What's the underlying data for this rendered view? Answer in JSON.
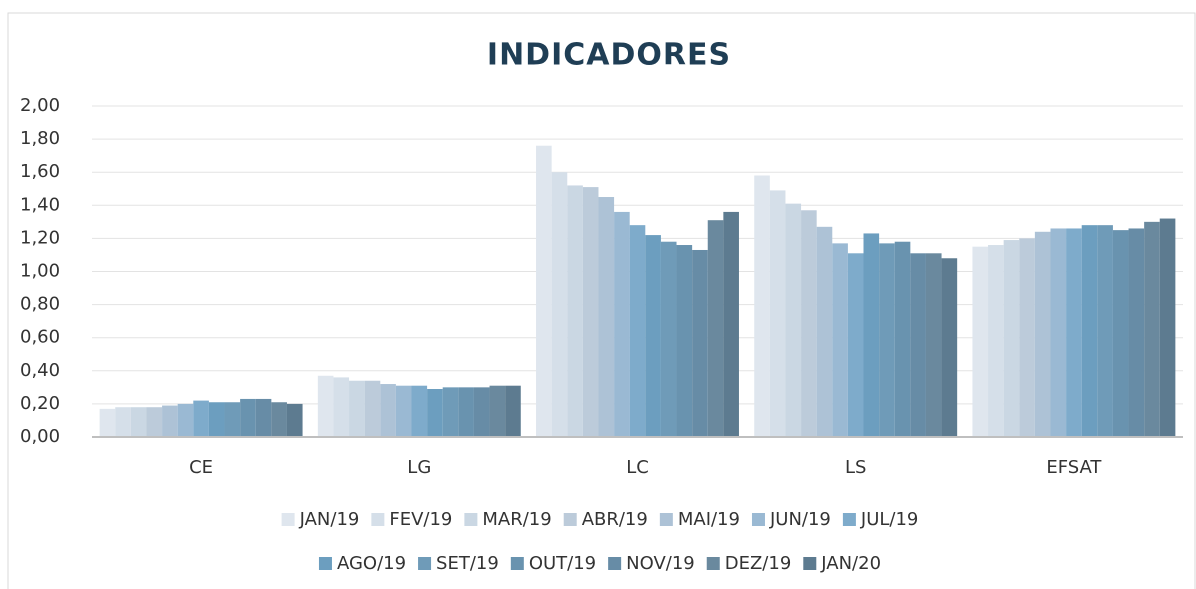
{
  "chart_data": {
    "type": "bar",
    "title": "INDICADORES",
    "categories": [
      "CE",
      "LG",
      "LC",
      "LS",
      "EFSAT"
    ],
    "ylim": [
      0,
      2
    ],
    "yticks": [
      {
        "value": 0,
        "label": "0,00"
      },
      {
        "value": 0.2,
        "label": "0,20"
      },
      {
        "value": 0.4,
        "label": "0,40"
      },
      {
        "value": 0.6,
        "label": "0,60"
      },
      {
        "value": 0.8,
        "label": "0,80"
      },
      {
        "value": 1,
        "label": "1,00"
      },
      {
        "value": 1.2,
        "label": "1,20"
      },
      {
        "value": 1.4,
        "label": "1,40"
      },
      {
        "value": 1.6,
        "label": "1,60"
      },
      {
        "value": 1.8,
        "label": "1,80"
      },
      {
        "value": 2,
        "label": "2,00"
      }
    ],
    "grid": true,
    "series": [
      {
        "name": "JAN/19",
        "color": "#dfe6ee",
        "values": [
          0.17,
          0.37,
          1.76,
          1.58,
          1.15
        ]
      },
      {
        "name": "FEV/19",
        "color": "#d5dfe9",
        "values": [
          0.18,
          0.36,
          1.6,
          1.49,
          1.16
        ]
      },
      {
        "name": "MAR/19",
        "color": "#cad7e3",
        "values": [
          0.18,
          0.34,
          1.52,
          1.41,
          1.19
        ]
      },
      {
        "name": "ABR/19",
        "color": "#bccbda",
        "values": [
          0.18,
          0.34,
          1.51,
          1.37,
          1.2
        ]
      },
      {
        "name": "MAI/19",
        "color": "#adc2d6",
        "values": [
          0.19,
          0.32,
          1.45,
          1.27,
          1.24
        ]
      },
      {
        "name": "JUN/19",
        "color": "#9ab9d3",
        "values": [
          0.2,
          0.31,
          1.36,
          1.17,
          1.26
        ]
      },
      {
        "name": "JUL/19",
        "color": "#7eabcb",
        "values": [
          0.22,
          0.31,
          1.28,
          1.11,
          1.26
        ]
      },
      {
        "name": "AGO/19",
        "color": "#6c9ebf",
        "values": [
          0.21,
          0.29,
          1.22,
          1.23,
          1.28
        ]
      },
      {
        "name": "SET/19",
        "color": "#6f9bb8",
        "values": [
          0.21,
          0.3,
          1.18,
          1.17,
          1.28
        ]
      },
      {
        "name": "OUT/19",
        "color": "#6993af",
        "values": [
          0.23,
          0.3,
          1.16,
          1.18,
          1.25
        ]
      },
      {
        "name": "NOV/19",
        "color": "#678ca6",
        "values": [
          0.23,
          0.3,
          1.13,
          1.11,
          1.26
        ]
      },
      {
        "name": "DEZ/19",
        "color": "#6a899e",
        "values": [
          0.21,
          0.31,
          1.31,
          1.11,
          1.3
        ]
      },
      {
        "name": "JAN/20",
        "color": "#5d7b90",
        "values": [
          0.2,
          0.31,
          1.36,
          1.08,
          1.32
        ]
      }
    ]
  }
}
